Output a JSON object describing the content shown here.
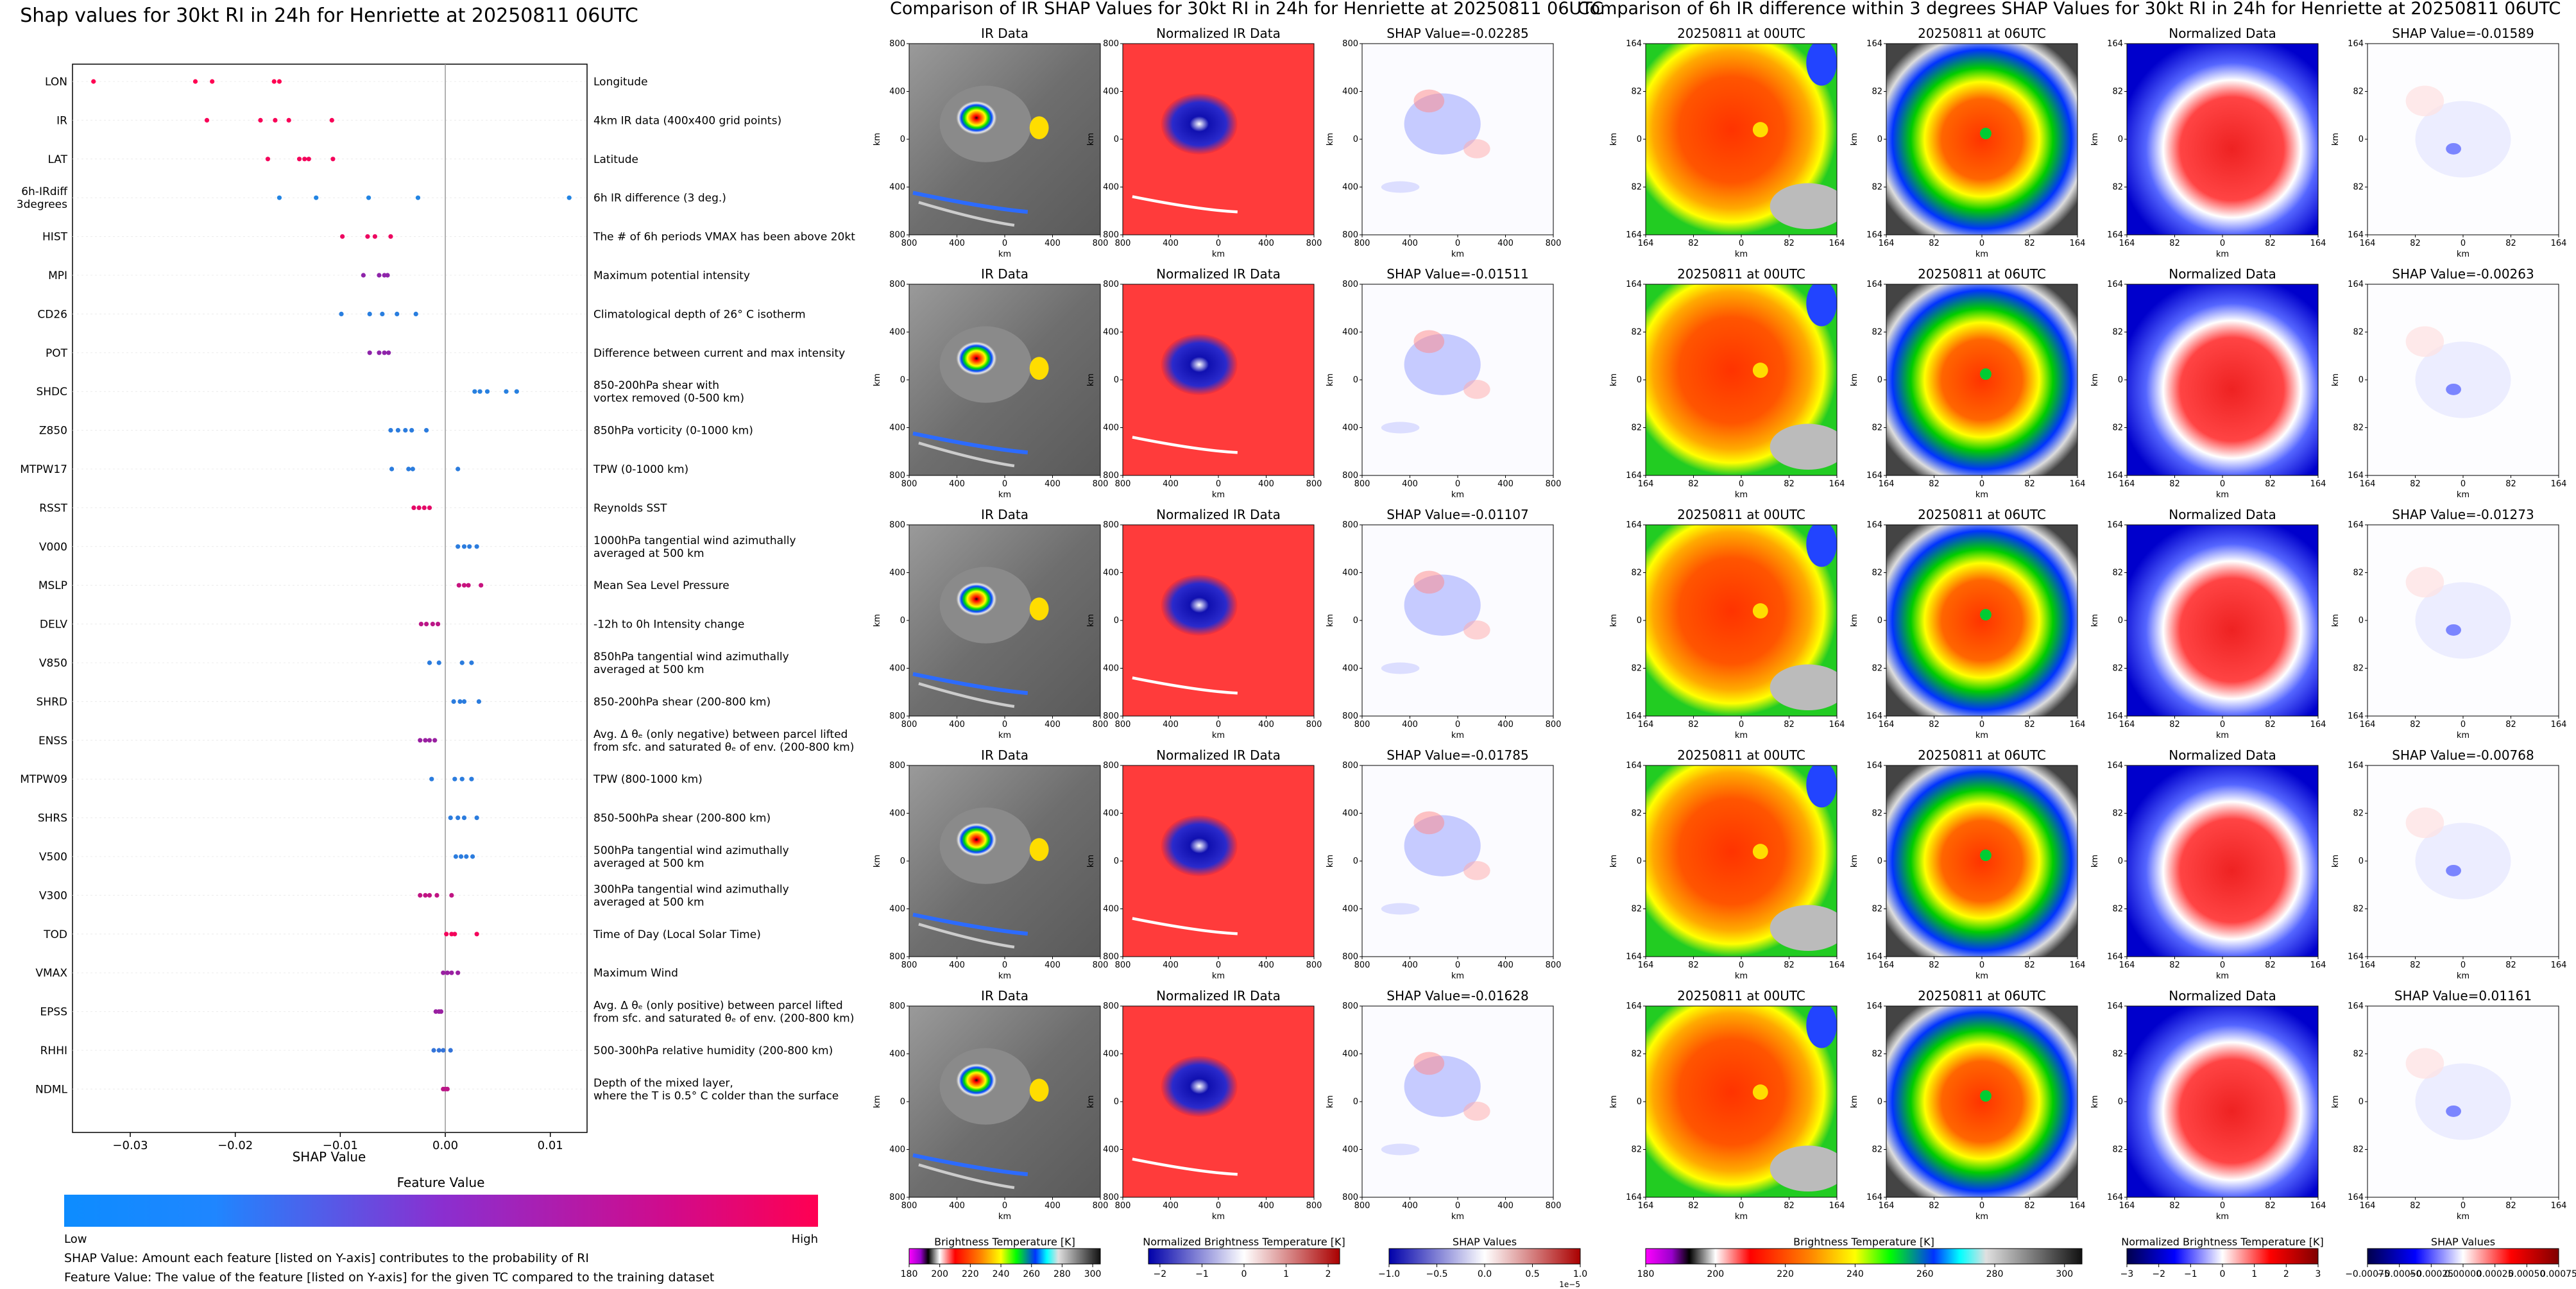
{
  "colors": {
    "low": "#1E88E5",
    "mid": "#8E24AA",
    "high": "#FF0052",
    "shap_neg": "#0000ff",
    "shap_pos": "#ff0000"
  },
  "chart_data": [
    {
      "type": "scatter",
      "title": "Shap values for 30kt RI in 24h for Henriette at 20250811 06UTC",
      "xlabel": "SHAP Value",
      "xlim": [
        -0.0355,
        0.0135
      ],
      "xticks": [
        -0.03,
        -0.02,
        -0.01,
        0.0,
        0.01
      ],
      "xtick_labels": [
        "−0.03",
        "−0.02",
        "−0.01",
        "0.00",
        "0.01"
      ],
      "colorbar": {
        "title": "Feature Value",
        "low_label": "Low",
        "high_label": "High"
      },
      "notes": [
        "SHAP Value: Amount each feature [listed on Y-axis] contributes to the probability of RI",
        "Feature Value: The value of the feature [listed on Y-axis] for the given TC compared to the training dataset"
      ],
      "features": [
        {
          "name": "LON",
          "desc": [
            "Longitude"
          ],
          "points": [
            -0.0335,
            -0.0238,
            -0.0222,
            -0.0163,
            -0.0158
          ],
          "level": 1.0
        },
        {
          "name": "IR",
          "desc": [
            "4km IR data (400x400 grid points)"
          ],
          "points": [
            -0.0227,
            -0.0176,
            -0.0162,
            -0.0149,
            -0.0108
          ],
          "level": 0.97
        },
        {
          "name": "LAT",
          "desc": [
            "Latitude"
          ],
          "points": [
            -0.0169,
            -0.0139,
            -0.0134,
            -0.013,
            -0.0107
          ],
          "level": 0.95
        },
        {
          "name": "6h-IRdiff\n3degrees",
          "desc": [
            "6h IR difference (3 deg.)"
          ],
          "points": [
            -0.0158,
            -0.0123,
            -0.0073,
            -0.0026,
            0.0118
          ],
          "level": 0.02
        },
        {
          "name": "HIST",
          "desc": [
            "The # of 6h periods VMAX has been above 20kt"
          ],
          "points": [
            -0.0098,
            -0.0074,
            -0.0067,
            -0.0052
          ],
          "level": 0.92
        },
        {
          "name": "MPI",
          "desc": [
            "Maximum potential intensity"
          ],
          "points": [
            -0.0078,
            -0.0063,
            -0.0058,
            -0.0055
          ],
          "level": 0.5
        },
        {
          "name": "CD26",
          "desc": [
            "Climatological depth of 26° C isotherm"
          ],
          "points": [
            -0.0099,
            -0.0072,
            -0.006,
            -0.0046,
            -0.0028
          ],
          "level": 0.05
        },
        {
          "name": "POT",
          "desc": [
            "Difference between current and max intensity"
          ],
          "points": [
            -0.0072,
            -0.0063,
            -0.0058,
            -0.0054
          ],
          "level": 0.5
        },
        {
          "name": "SHDC",
          "desc": [
            "850-200hPa shear with",
            "vortex removed (0-500 km)"
          ],
          "points": [
            0.0028,
            0.0033,
            0.004,
            0.0058,
            0.0068
          ],
          "level": 0.04
        },
        {
          "name": "Z850",
          "desc": [
            "850hPa vorticity (0-1000 km)"
          ],
          "points": [
            -0.0052,
            -0.0045,
            -0.0038,
            -0.0032,
            -0.0018
          ],
          "level": 0.06
        },
        {
          "name": "MTPW17",
          "desc": [
            "TPW (0-1000 km)"
          ],
          "points": [
            -0.0051,
            -0.0035,
            -0.0031,
            0.0012
          ],
          "level": 0.06
        },
        {
          "name": "RSST",
          "desc": [
            "Reynolds SST"
          ],
          "points": [
            -0.003,
            -0.0025,
            -0.002,
            -0.0015
          ],
          "level": 0.88
        },
        {
          "name": "V000",
          "desc": [
            "1000hPa tangential wind azimuthally",
            "averaged at 500 km"
          ],
          "points": [
            0.0012,
            0.0018,
            0.0023,
            0.003
          ],
          "level": 0.06
        },
        {
          "name": "MSLP",
          "desc": [
            "Mean Sea Level Pressure"
          ],
          "points": [
            0.0013,
            0.0018,
            0.0022,
            0.0034
          ],
          "level": 0.75
        },
        {
          "name": "DELV",
          "desc": [
            "-12h to 0h Intensity change"
          ],
          "points": [
            -0.0023,
            -0.0018,
            -0.0012,
            -0.0007
          ],
          "level": 0.7
        },
        {
          "name": "V850",
          "desc": [
            "850hPa tangential wind azimuthally",
            "averaged at 500 km"
          ],
          "points": [
            -0.0015,
            -0.0006,
            0.0016,
            0.0025
          ],
          "level": 0.06
        },
        {
          "name": "SHRD",
          "desc": [
            "850-200hPa shear (200-800 km)"
          ],
          "points": [
            0.0008,
            0.0014,
            0.0018,
            0.0032
          ],
          "level": 0.06
        },
        {
          "name": "ENSS",
          "desc": [
            "Avg. Δ θₑ (only negative) between parcel lifted",
            "from sfc. and saturated θₑ of env. (200-800 km)"
          ],
          "points": [
            -0.0024,
            -0.0019,
            -0.0015,
            -0.001
          ],
          "level": 0.55
        },
        {
          "name": "MTPW09",
          "desc": [
            "TPW (800-1000 km)"
          ],
          "points": [
            -0.0013,
            0.0009,
            0.0016,
            0.0025
          ],
          "level": 0.06
        },
        {
          "name": "SHRS",
          "desc": [
            "850-500hPa shear (200-800 km)"
          ],
          "points": [
            0.0005,
            0.0012,
            0.0018,
            0.003
          ],
          "level": 0.06
        },
        {
          "name": "V500",
          "desc": [
            "500hPa tangential wind azimuthally",
            "averaged at 500 km"
          ],
          "points": [
            0.001,
            0.0015,
            0.002,
            0.0026
          ],
          "level": 0.06
        },
        {
          "name": "V300",
          "desc": [
            "300hPa tangential wind azimuthally",
            "averaged at 500 km"
          ],
          "points": [
            -0.0024,
            -0.0019,
            -0.0015,
            -0.0008,
            0.0006
          ],
          "level": 0.72
        },
        {
          "name": "TOD",
          "desc": [
            "Time of Day (Local Solar Time)"
          ],
          "points": [
            0.0001,
            0.0006,
            0.0009,
            0.003
          ],
          "level": 0.95
        },
        {
          "name": "VMAX",
          "desc": [
            "Maximum Wind"
          ],
          "points": [
            -0.0002,
            0.0002,
            0.0006,
            0.0012
          ],
          "level": 0.55
        },
        {
          "name": "EPSS",
          "desc": [
            "Avg. Δ θₑ (only positive) between parcel lifted",
            "from sfc. and saturated θₑ of env. (200-800 km)"
          ],
          "points": [
            -0.0009,
            -0.0006,
            -0.0004
          ],
          "level": 0.55
        },
        {
          "name": "RHHI",
          "desc": [
            "500-300hPa relative humidity (200-800 km)"
          ],
          "points": [
            -0.0011,
            -0.0006,
            -0.0002,
            0.0005
          ],
          "level": 0.1
        },
        {
          "name": "NDML",
          "desc": [
            "Depth of the mixed layer,",
            "where the T is 0.5° C colder than the surface"
          ],
          "points": [
            -0.0002,
            0.0,
            0.0002
          ],
          "level": 0.7
        }
      ]
    },
    {
      "type": "heatmap",
      "title": "Comparison of IR SHAP Values for 30kt RI in 24h for Henriette at 20250811 06UTC",
      "column_titles": [
        "IR Data",
        "Normalized IR Data"
      ],
      "shap_values": [
        "SHAP Value=-0.02285",
        "SHAP Value=-0.01511",
        "SHAP Value=-0.01107",
        "SHAP Value=-0.01785",
        "SHAP Value=-0.01628"
      ],
      "axis_label": "km",
      "xtick_labels": [
        "800",
        "400",
        "0",
        "400",
        "800"
      ],
      "ytick_labels": [
        "800",
        "400",
        "0",
        "400",
        "800"
      ],
      "colorbars": [
        {
          "label": "Brightness Temperature [K]",
          "ticks": [
            "180",
            "200",
            "220",
            "240",
            "260",
            "280",
            "300"
          ]
        },
        {
          "label": "Normalized Brightness Temperature [K]",
          "ticks": [
            "−2",
            "−1",
            "0",
            "1",
            "2"
          ]
        },
        {
          "label": "SHAP Values",
          "ticks": [
            "−1.0",
            "−0.5",
            "0.0",
            "0.5",
            "1.0"
          ],
          "multiplier": "1e−5"
        }
      ]
    },
    {
      "type": "heatmap",
      "title": "Comparison of 6h IR difference within 3 degrees SHAP Values for 30kt RI in 24h for Henriette at 20250811 06UTC",
      "column_titles": [
        "20250811 at 00UTC",
        "20250811 at 06UTC",
        "Normalized Data"
      ],
      "shap_values": [
        "SHAP Value=-0.01589",
        "SHAP Value=-0.00263",
        "SHAP Value=-0.01273",
        "SHAP Value=-0.00768",
        "SHAP Value=0.01161"
      ],
      "axis_label": "km",
      "xtick_labels": [
        "164",
        "82",
        "0",
        "82",
        "164"
      ],
      "ytick_labels": [
        "164",
        "82",
        "0",
        "82",
        "164"
      ],
      "colorbars": [
        {
          "label": "Brightness Temperature [K]",
          "ticks": [
            "180",
            "200",
            "220",
            "240",
            "260",
            "280",
            "300"
          ]
        },
        {
          "label": "Normalized Brightness Temperature [K]",
          "ticks": [
            "−3",
            "−2",
            "−1",
            "0",
            "1",
            "2",
            "3"
          ]
        },
        {
          "label": "SHAP Values",
          "ticks": [
            "−0.00075",
            "−0.00050",
            "−0.00025",
            "0.00000",
            "0.00025",
            "0.00050",
            "0.00075"
          ]
        }
      ]
    }
  ]
}
